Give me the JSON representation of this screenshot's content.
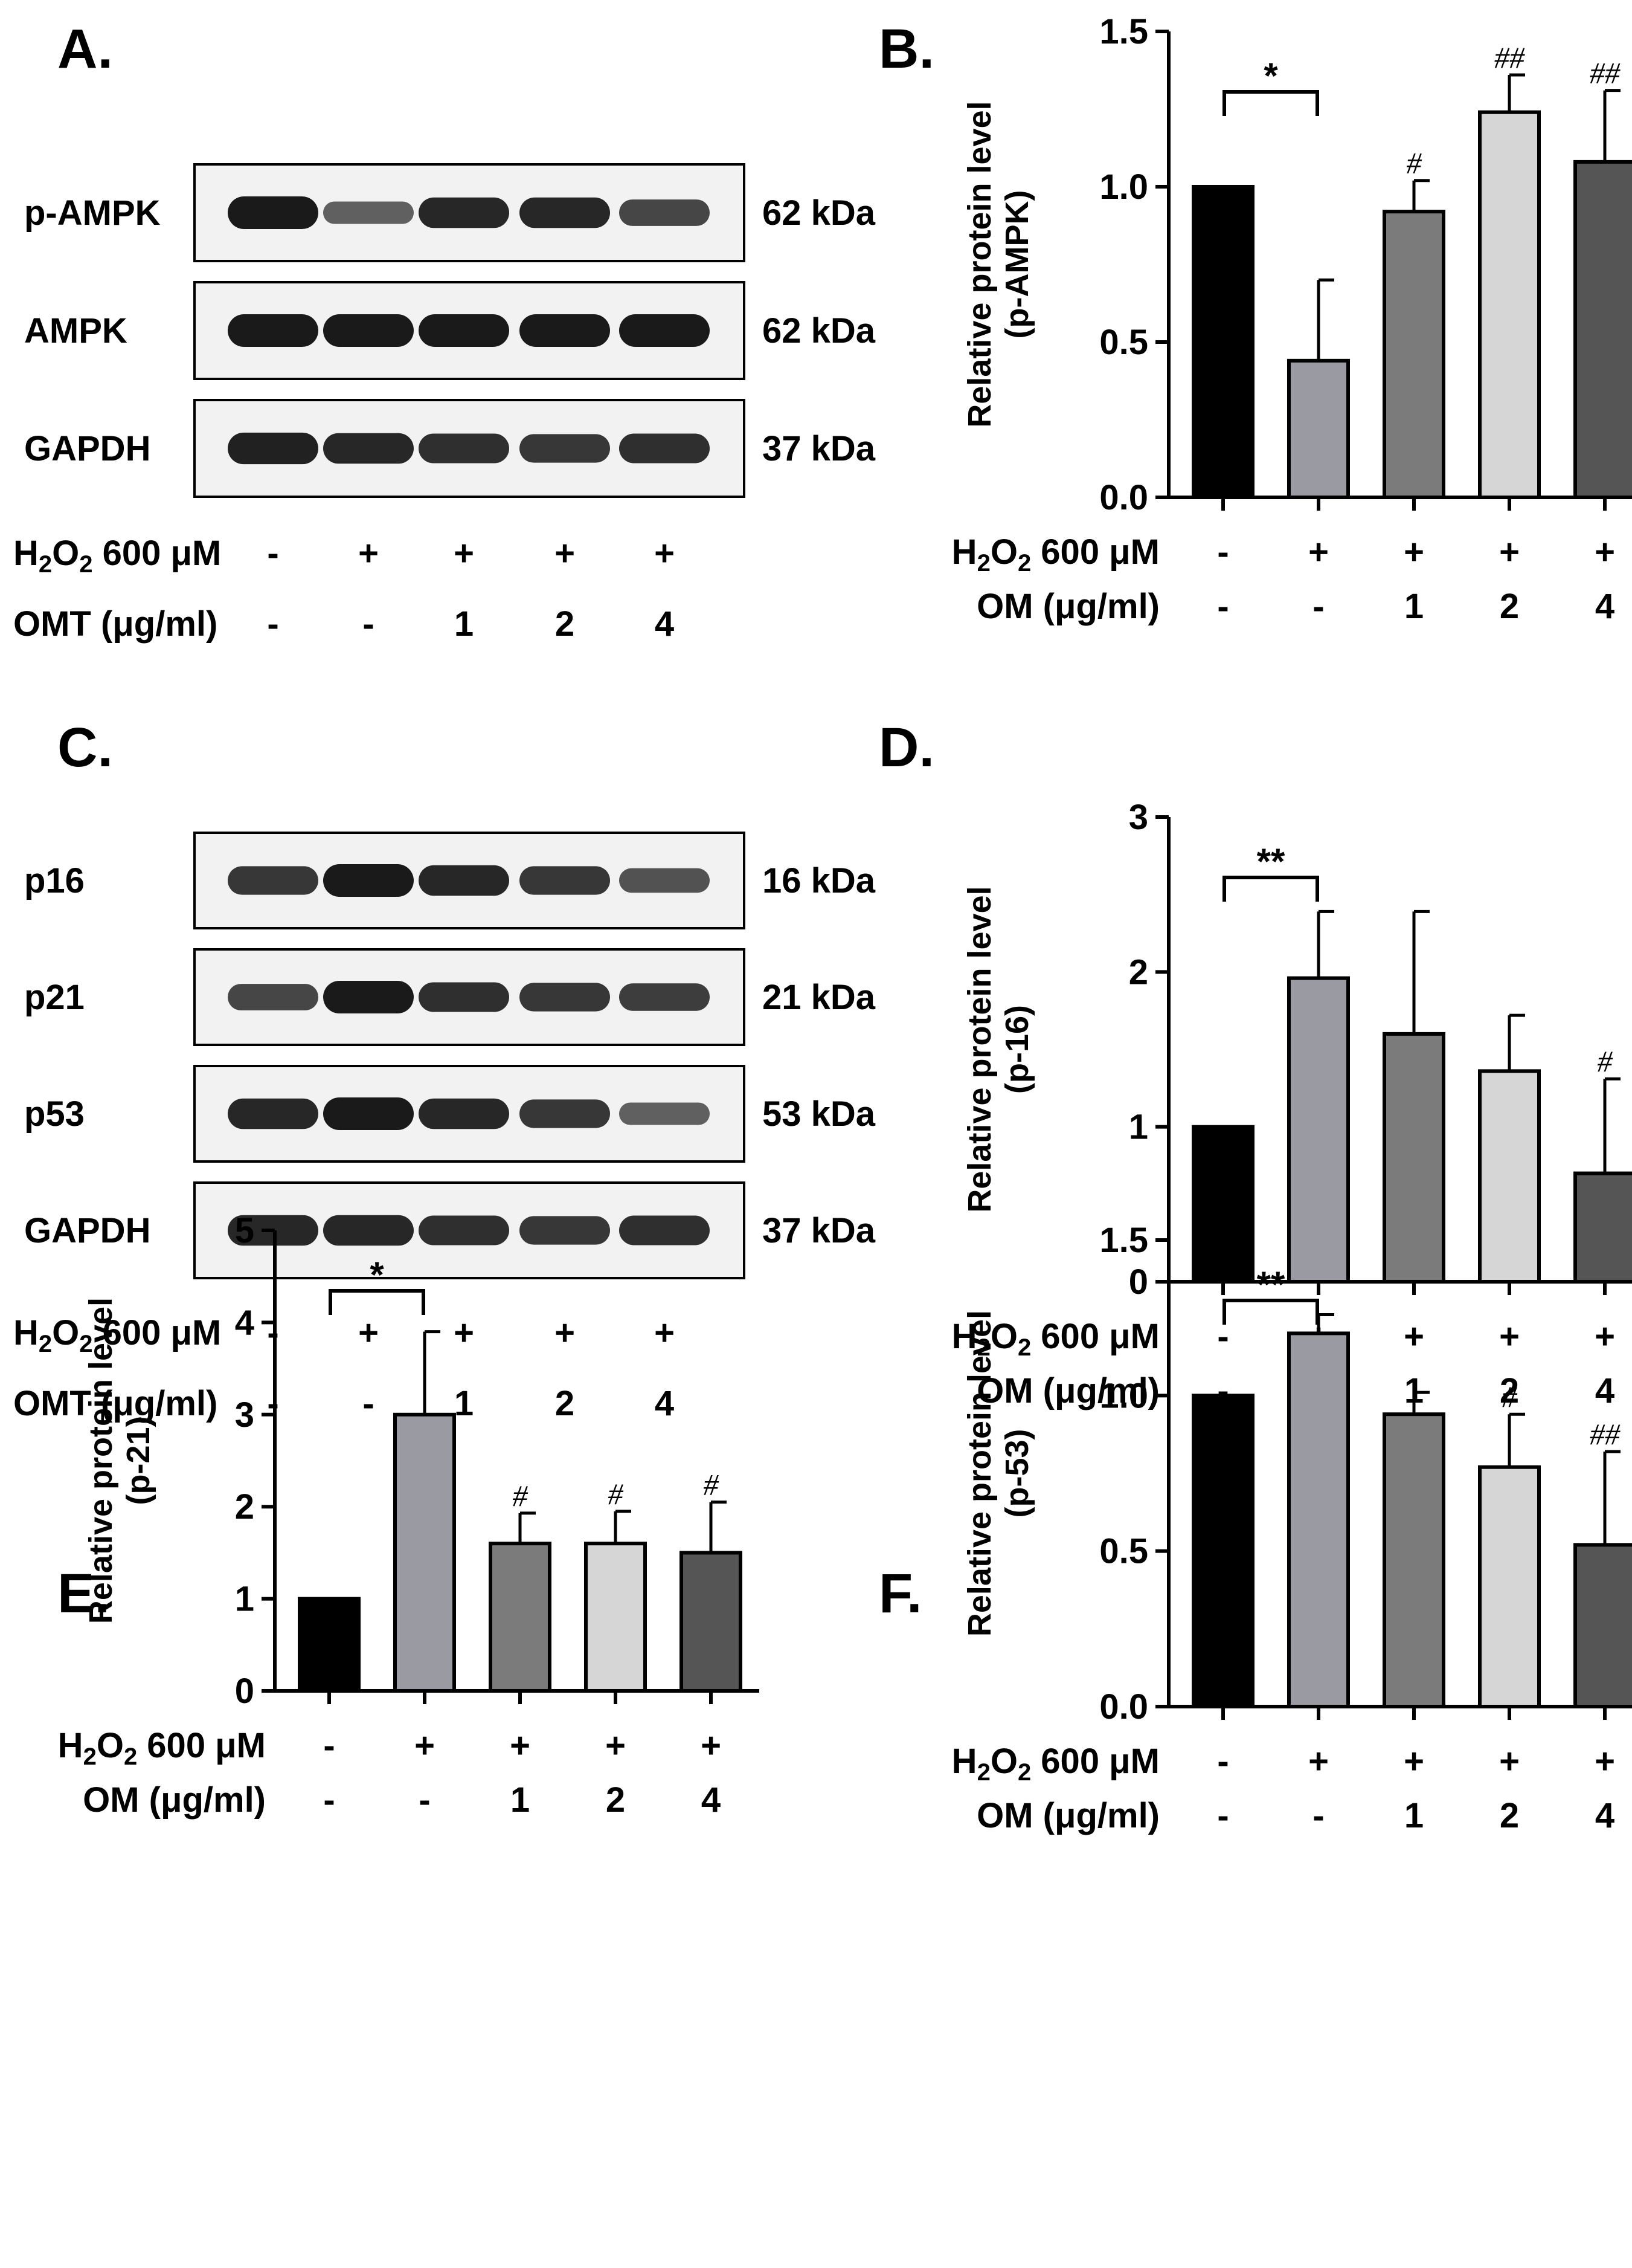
{
  "colors": {
    "axis": "#000000",
    "bars": [
      "#000000",
      "#9a9aa2",
      "#7b7b7b",
      "#d6d6d6",
      "#555555"
    ],
    "band": "#1a1a1a",
    "blot_bg": "#f2f2f2"
  },
  "treatments": {
    "h2o2_label": "H₂O₂ 600 μM",
    "omt_label": "OMT (μg/ml)",
    "om_label": "OM (μg/ml)",
    "h2o2_values": [
      "-",
      "+",
      "+",
      "+",
      "+"
    ],
    "dose_values": [
      "-",
      "-",
      "1",
      "2",
      "4"
    ]
  },
  "blots": [
    {
      "panel": "A.",
      "rows": [
        {
          "name": "p-AMPK",
          "kda": "62 kDa",
          "intensity": [
            1.0,
            0.5,
            0.9,
            0.9,
            0.7
          ]
        },
        {
          "name": "AMPK",
          "kda": "62 kDa",
          "intensity": [
            1.0,
            1.0,
            1.0,
            1.0,
            1.0
          ]
        },
        {
          "name": "GAPDH",
          "kda": "37 kDa",
          "intensity": [
            0.95,
            0.9,
            0.85,
            0.8,
            0.85
          ]
        }
      ]
    },
    {
      "panel": "C.",
      "rows": [
        {
          "name": "p16",
          "kda": "16 kDa",
          "intensity": [
            0.8,
            1.0,
            0.9,
            0.8,
            0.6
          ]
        },
        {
          "name": "p21",
          "kda": "21 kDa",
          "intensity": [
            0.7,
            1.0,
            0.85,
            0.8,
            0.75
          ]
        },
        {
          "name": "p53",
          "kda": "53 kDa",
          "intensity": [
            0.9,
            1.0,
            0.9,
            0.8,
            0.5
          ]
        },
        {
          "name": "GAPDH",
          "kda": "37 kDa",
          "intensity": [
            0.9,
            0.9,
            0.85,
            0.8,
            0.85
          ]
        }
      ]
    }
  ],
  "chart_data": [
    {
      "panel": "B.",
      "type": "bar",
      "ylabel": "Relative protein level",
      "ylabel2": "(p-AMPK)",
      "ylim": [
        0,
        1.5
      ],
      "yticks": [
        "0.0",
        "0.5",
        "1.0",
        "1.5"
      ],
      "values": [
        1.0,
        0.44,
        0.92,
        1.24,
        1.08
      ],
      "errors": [
        0,
        0.26,
        0.1,
        0.12,
        0.23
      ],
      "significance": {
        "bracket": "*",
        "marks": [
          "",
          "",
          "#",
          "##",
          "##"
        ]
      }
    },
    {
      "panel": "D.",
      "type": "bar",
      "ylabel": "Relative protein level",
      "ylabel2": "(p-16)",
      "ylim": [
        0,
        3
      ],
      "yticks": [
        "0",
        "1",
        "2",
        "3"
      ],
      "values": [
        1.0,
        1.96,
        1.6,
        1.36,
        0.7
      ],
      "errors": [
        0,
        0.43,
        0.79,
        0.36,
        0.61
      ],
      "significance": {
        "bracket": "**",
        "marks": [
          "",
          "",
          "",
          "",
          "#"
        ]
      }
    },
    {
      "panel": "E.",
      "type": "bar",
      "ylabel": "Relative protein level",
      "ylabel2": "(p-21)",
      "ylim": [
        0,
        5
      ],
      "yticks": [
        "0",
        "1",
        "2",
        "3",
        "4",
        "5"
      ],
      "values": [
        1.0,
        3.0,
        1.6,
        1.6,
        1.5
      ],
      "errors": [
        0,
        0.9,
        0.33,
        0.35,
        0.55
      ],
      "significance": {
        "bracket": "*",
        "marks": [
          "",
          "",
          "#",
          "#",
          "#"
        ]
      }
    },
    {
      "panel": "F.",
      "type": "bar",
      "ylabel": "Relative protein level",
      "ylabel2": "(p-53)",
      "ylim": [
        0,
        1.5
      ],
      "yticks": [
        "0.0",
        "0.5",
        "1.0",
        "1.5"
      ],
      "values": [
        1.0,
        1.2,
        0.94,
        0.77,
        0.52
      ],
      "errors": [
        0,
        0.06,
        0.07,
        0.17,
        0.3
      ],
      "significance": {
        "bracket": "**",
        "marks": [
          "",
          "",
          "",
          "#",
          "##"
        ]
      }
    }
  ]
}
